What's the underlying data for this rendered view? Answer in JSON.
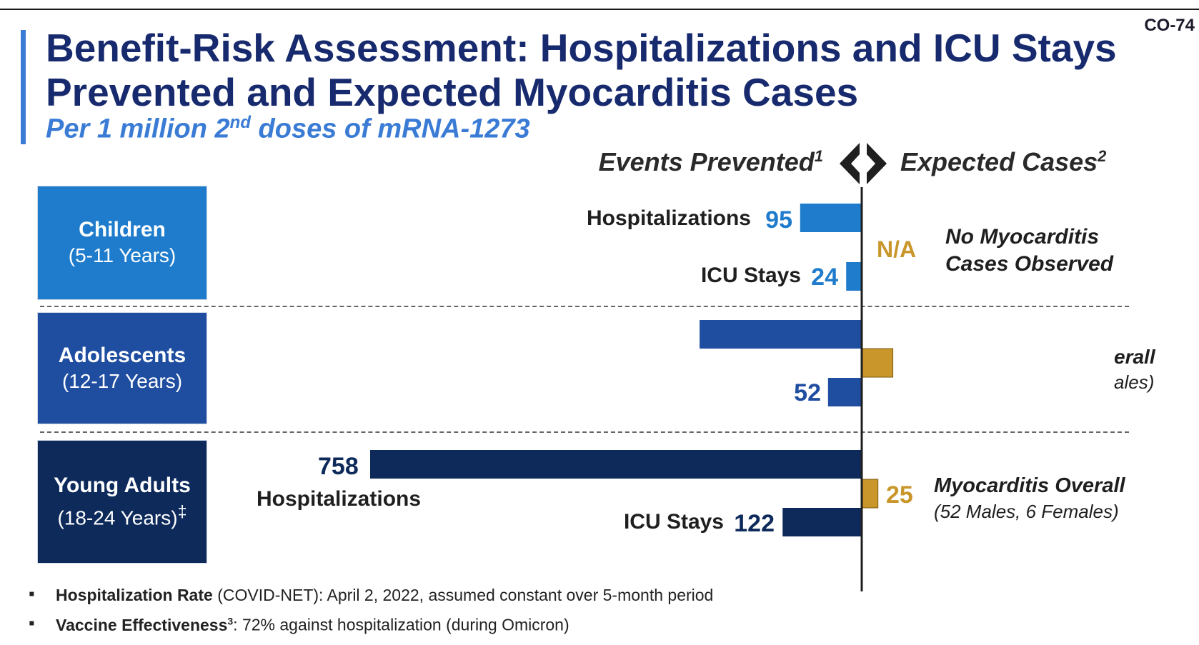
{
  "slide_number": "CO-74",
  "title_line1": "Benefit-Risk Assessment: Hospitalizations and ICU Stays",
  "title_line2": "Prevented and Expected Myocarditis Cases",
  "subtitle": {
    "pre": "Per 1 million 2",
    "sup": "nd",
    "post": " doses of mRNA-1273"
  },
  "header_left": {
    "text": "Events Prevented",
    "sup": "1"
  },
  "header_right": {
    "text": "Expected Cases",
    "sup": "2"
  },
  "colors": {
    "children": "#1f7ccc",
    "adolescents": "#1f4ea1",
    "young_adults": "#0d2a5b",
    "myocarditis": "#c9962b",
    "title": "#172a6e",
    "accent": "#3a7bd5"
  },
  "groups": [
    {
      "name": "Children",
      "age": "(5-11 Years)",
      "age_sup": ""
    },
    {
      "name": "Adolescents",
      "age": "(12-17 Years)",
      "age_sup": ""
    },
    {
      "name": "Young Adults",
      "age": "(18-24 Years)",
      "age_sup": "‡"
    }
  ],
  "chart_data": {
    "type": "bar",
    "orientation": "horizontal-diverging",
    "left_side": "Events Prevented",
    "right_side": "Expected Cases",
    "rows": [
      {
        "group": "Children (5-11 Years)",
        "measure": "Hospitalizations",
        "label": "Hospitalizations",
        "value_label": "95",
        "value": 95,
        "side": "left"
      },
      {
        "group": "Children (5-11 Years)",
        "measure": "ICU Stays",
        "label": "ICU Stays",
        "value_label": "24",
        "value": 24,
        "side": "left"
      },
      {
        "group": "Adolescents (12-17 Years)",
        "measure": "Hospitalizations",
        "label": "",
        "value_label": "",
        "value": 250,
        "side": "left"
      },
      {
        "group": "Adolescents (12-17 Years)",
        "measure": "ICU Stays",
        "label": "",
        "value_label": "52",
        "value": 52,
        "side": "left"
      },
      {
        "group": "Young Adults (18-24 Years)",
        "measure": "Hospitalizations",
        "label": "Hospitalizations",
        "value_label": "758",
        "value": 758,
        "side": "left"
      },
      {
        "group": "Young Adults (18-24 Years)",
        "measure": "ICU Stays",
        "label": "ICU Stays",
        "value_label": "122",
        "value": 122,
        "side": "left"
      },
      {
        "group": "Adolescents (12-17 Years)",
        "measure": "Myocarditis",
        "label": "",
        "value_label": "",
        "value": 48,
        "side": "right"
      },
      {
        "group": "Young Adults (18-24 Years)",
        "measure": "Myocarditis",
        "label": "",
        "value_label": "25",
        "value": 25,
        "side": "right"
      }
    ],
    "children_right": {
      "na": "N/A",
      "note_line1": "No Myocarditis",
      "note_line2": "Cases Observed"
    },
    "adolescents_right": {
      "note_line1": "erall",
      "note_line2": "ales)"
    },
    "young_adults_right": {
      "note_line1": "Myocarditis Overall",
      "note_line2": "(52 Males, 6 Females)"
    }
  },
  "footnotes": [
    {
      "bold": "Hospitalization Rate",
      "bold_sup": "",
      "text": " (COVID-NET): April 2, 2022, assumed constant over 5-month period"
    },
    {
      "bold": "Vaccine Effectiveness",
      "bold_sup": "3",
      "text": ": 72% against hospitalization (during Omicron)"
    }
  ]
}
